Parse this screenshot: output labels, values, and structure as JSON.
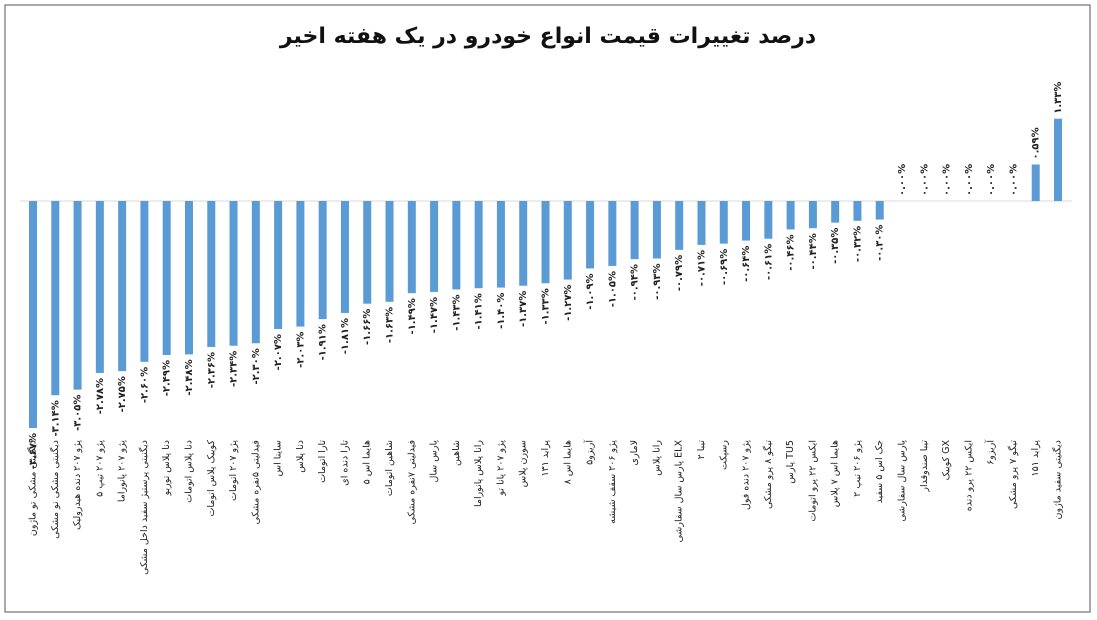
{
  "chart_data": {
    "type": "bar",
    "title": "درصد تغییرات قیمت انواع خودرو در یک هفته اخیر",
    "color": "#5b9bd5",
    "categories": [
      "دیگنیتی مشکی تو ماژون",
      "دیگنیتی مشکی نو مشکی",
      "پژو ۲۰۷ دنده هیدرولیک",
      "پژو ۲۰۷ تیپ ۵",
      "پژو ۲۰۷ پانوراما",
      "دیگنیتی پرستیژ سفید داخل مشکی",
      "دنا پلاس توربو",
      "دنا پلاس اتومات",
      "کوییک پلاس اتومات",
      "پژو ۲۰۷ اتومات",
      "فیدلیتی ۵نفره مشکی",
      "ساینا اس",
      "دنا پلاس",
      "تارا اتومات",
      "تارا دنده ای",
      "هایما اس ۵",
      "شاهین اتومات",
      "فیدلیتی ۷نفره مشکی",
      "پارس سال",
      "شاهین",
      "رانا پلاس پانوراما",
      "پژو ۲۰۷ پانا تو",
      "سورن پلاس",
      "پراید ۱۳۱",
      "هایما اس ۸",
      "آریزو۵",
      "پژو ۲۰۶ سقف شیشه",
      "لاماری",
      "رانا پلاس",
      "پارس سال سفارشی ELX",
      "تیبا ۲",
      "رسپکت",
      "پژو ۲۰۷ دنده فول",
      "تیگو ۸ پرو مشکی",
      "پارس TU5",
      "ایکس ۲۲ پرو اتومات",
      "هایما اس ۷ پلاس",
      "پژو ۲۰۶ تیپ ۲",
      "جک اس ۵ سفید",
      "پارس سال سفارشی",
      "تیبا صندوقدار",
      "کوییک GX",
      "ایکس ۲۲ پرو دنده",
      "آریزو۶",
      "تیگو ۷ پرو مشکی",
      "پراید ۱۵۱",
      "دیگنیتی سفید ماژون"
    ],
    "values": [
      -3.67,
      -3.14,
      -3.05,
      -2.78,
      -2.75,
      -2.6,
      -2.49,
      -2.48,
      -2.36,
      -2.34,
      -2.3,
      -2.07,
      -2.03,
      -1.91,
      -1.81,
      -1.66,
      -1.63,
      -1.49,
      -1.47,
      -1.43,
      -1.41,
      -1.4,
      -1.37,
      -1.33,
      -1.27,
      -1.09,
      -1.05,
      -0.94,
      -0.93,
      -0.79,
      -0.71,
      -0.69,
      -0.64,
      -0.61,
      -0.46,
      -0.44,
      -0.35,
      -0.32,
      -0.3,
      0.0,
      0.0,
      0.0,
      0.0,
      0.0,
      0.0,
      0.59,
      1.33
    ],
    "value_labels": [
      "-۳.۶۷%",
      "-۳.۱۴%",
      "-۳.۰۵%",
      "-۲.۷۸%",
      "-۲.۷۵%",
      "-۲.۶۰%",
      "-۲.۴۹%",
      "-۲.۴۸%",
      "-۲.۳۶%",
      "-۲.۳۴%",
      "-۲.۳۰%",
      "-۲.۰۷%",
      "-۲.۰۳%",
      "-۱.۹۱%",
      "-۱.۸۱%",
      "-۱.۶۶%",
      "-۱.۶۳%",
      "-۱.۴۹%",
      "-۱.۴۷%",
      "-۱.۴۳%",
      "-۱.۴۱%",
      "-۱.۴۰%",
      "-۱.۳۷%",
      "-۱.۳۳%",
      "-۱.۲۷%",
      "-۱.۰۹%",
      "-۱.۰۵%",
      "-۰.۹۴%",
      "-۰.۹۳%",
      "-۰.۷۹%",
      "-۰.۷۱%",
      "-۰.۶۹%",
      "-۰.۶۴%",
      "-۰.۶۱%",
      "-۰.۴۶%",
      "-۰.۴۴%",
      "-۰.۳۵%",
      "-۰.۳۲%",
      "-۰.۳۰%",
      "۰.۰۰%",
      "۰.۰۰%",
      "۰.۰۰%",
      "۰.۰۰%",
      "۰.۰۰%",
      "۰.۰۰%",
      "۰.۵۹%",
      "۱.۳۳%"
    ]
  }
}
